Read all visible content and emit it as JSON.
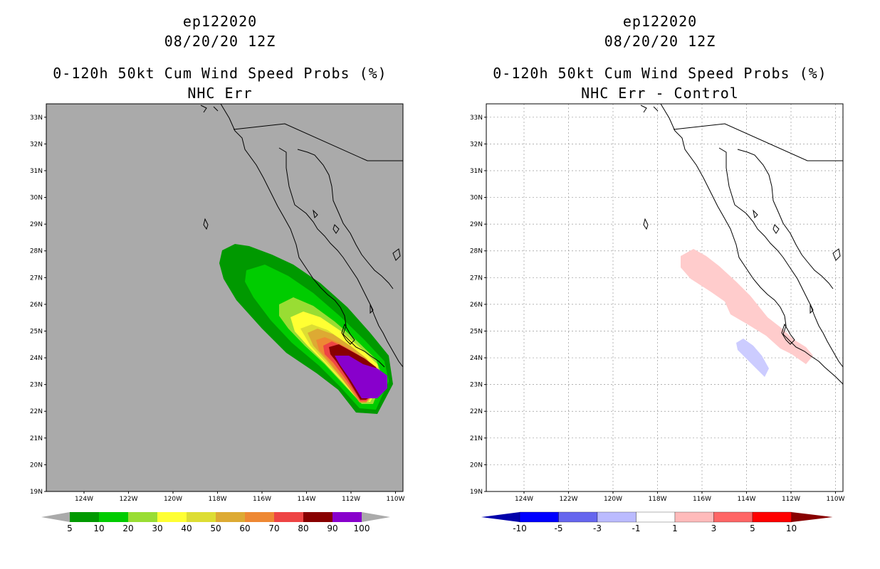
{
  "left": {
    "title_line1": "ep122020",
    "title_line2": "08/20/20 12Z",
    "title_line3": "0-120h 50kt Cum Wind Speed Probs (%)",
    "title_line4": "NHC Err",
    "lat_labels": [
      "33N",
      "32N",
      "31N",
      "30N",
      "29N",
      "28N",
      "27N",
      "26N",
      "25N",
      "24N",
      "23N",
      "22N",
      "21N",
      "20N",
      "19N"
    ],
    "lon_labels": [
      "124W",
      "122W",
      "120W",
      "118W",
      "116W",
      "114W",
      "112W",
      "110W"
    ],
    "colorbar_labels": [
      "5",
      "10",
      "20",
      "30",
      "40",
      "50",
      "60",
      "70",
      "80",
      "90",
      "100"
    ],
    "colorbar_colors": [
      "#009900",
      "#00cc00",
      "#99dd33",
      "#ffff33",
      "#dddd33",
      "#ddaa33",
      "#ee8833",
      "#ee4444",
      "#880000",
      "#8800cc"
    ]
  },
  "right": {
    "title_line1": "ep122020",
    "title_line2": "08/20/20 12Z",
    "title_line3": "0-120h 50kt Cum Wind Speed Probs (%)",
    "title_line4": "NHC Err - Control",
    "lat_labels": [
      "33N",
      "32N",
      "31N",
      "30N",
      "29N",
      "28N",
      "27N",
      "26N",
      "25N",
      "24N",
      "23N",
      "22N",
      "21N",
      "20N",
      "19N"
    ],
    "lon_labels": [
      "124W",
      "122W",
      "120W",
      "118W",
      "116W",
      "114W",
      "112W",
      "110W"
    ],
    "colorbar_labels": [
      "-10",
      "-5",
      "-3",
      "-1",
      "1",
      "3",
      "5",
      "10"
    ],
    "colorbar_colors": [
      "#0000aa",
      "#0000ff",
      "#6666ee",
      "#bbbbff",
      "#ffffff",
      "#ffbbbb",
      "#ff6666",
      "#ff0000",
      "#880000"
    ]
  },
  "colors": {
    "land_bg": "#aaaaaa",
    "ocean_bg": "#ffffff",
    "diff_pos": "#ffcccc",
    "diff_neg": "#ccccff"
  }
}
